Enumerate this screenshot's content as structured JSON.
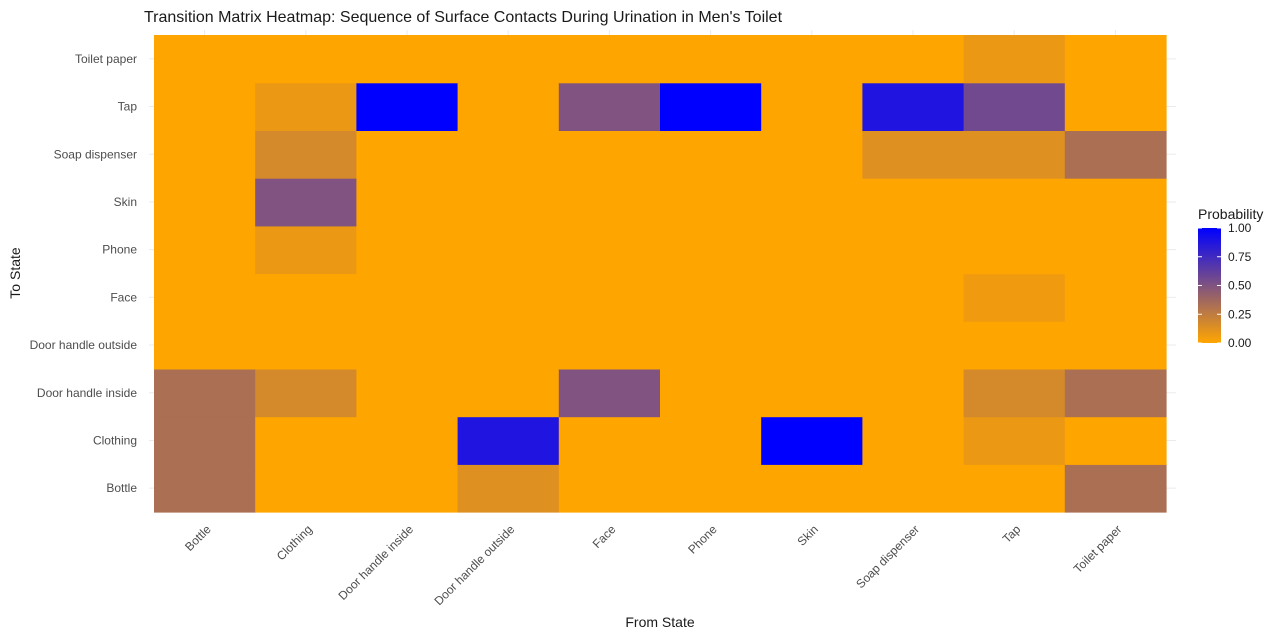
{
  "chart_data": {
    "type": "heatmap",
    "title": "Transition Matrix Heatmap: Sequence of Surface Contacts During Urination in Men's Toilet",
    "xlabel": "From State",
    "ylabel": "To State",
    "x_categories": [
      "Bottle",
      "Clothing",
      "Door handle inside",
      "Door handle outside",
      "Face",
      "Phone",
      "Skin",
      "Soap dispenser",
      "Tap",
      "Toilet paper"
    ],
    "y_categories": [
      "Bottle",
      "Clothing",
      "Door handle inside",
      "Door handle outside",
      "Face",
      "Phone",
      "Skin",
      "Soap dispenser",
      "Tap",
      "Toilet paper"
    ],
    "values": [
      [
        0.33,
        0.33,
        0.33,
        0,
        0,
        0,
        0,
        0,
        0,
        0
      ],
      [
        0,
        0,
        0.17,
        0,
        0,
        0.08,
        0.5,
        0.17,
        0.08,
        0
      ],
      [
        0,
        0,
        0,
        0,
        0,
        0,
        0,
        0,
        1.0,
        0
      ],
      [
        0.13,
        0.88,
        0,
        0,
        0,
        0,
        0,
        0,
        0,
        0
      ],
      [
        0,
        0,
        0.5,
        0,
        0,
        0,
        0,
        0,
        0.5,
        0
      ],
      [
        0,
        0,
        0,
        0,
        0,
        0,
        0,
        0,
        1.0,
        0
      ],
      [
        0,
        1.0,
        0,
        0,
        0,
        0,
        0,
        0,
        0,
        0
      ],
      [
        0,
        0,
        0,
        0,
        0,
        0,
        0,
        0.13,
        0.88,
        0
      ],
      [
        0,
        0.08,
        0.17,
        0,
        0.06,
        0,
        0,
        0.13,
        0.56,
        0.08
      ],
      [
        0.33,
        0,
        0.33,
        0,
        0,
        0,
        0,
        0.33,
        0,
        0
      ]
    ],
    "value_note": "values[from_index][to_index]",
    "legend": {
      "title": "Probability",
      "ticks": [
        "0.00",
        "0.25",
        "0.50",
        "0.75",
        "1.00"
      ],
      "low_color": "#FFA500",
      "high_color": "#0000FF",
      "placement": "right"
    },
    "grid": true
  }
}
